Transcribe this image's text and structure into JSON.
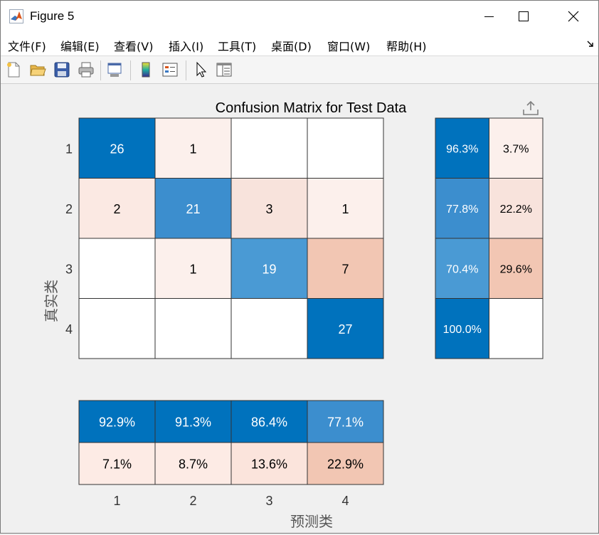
{
  "window": {
    "title": "Figure 5",
    "icon": "matlab-logo-icon"
  },
  "menu": [
    {
      "label": "文件(F)"
    },
    {
      "label": "编辑(E)"
    },
    {
      "label": "查看(V)"
    },
    {
      "label": "插入(I)"
    },
    {
      "label": "工具(T)"
    },
    {
      "label": "桌面(D)"
    },
    {
      "label": "窗口(W)"
    },
    {
      "label": "帮助(H)"
    }
  ],
  "toolbar": [
    "new-figure-icon",
    "open-folder-icon",
    "save-icon",
    "print-icon",
    "link-plot-icon",
    "colorbar-icon",
    "legend-icon",
    "pointer-icon",
    "property-inspector-icon"
  ],
  "colors": {
    "blue_dark": "#0072bd",
    "blue_mid": "#3c8ece",
    "blue_light": "#4a9ad4",
    "pink_light": "#fcf0ec",
    "pink_mid": "#f8e3dc",
    "pink_strong": "#f2c6b3"
  },
  "chart_data": {
    "type": "heatmap",
    "title": "Confusion Matrix for Test Data",
    "xlabel": "预测类",
    "ylabel": "真实类",
    "classes": [
      "1",
      "2",
      "3",
      "4"
    ],
    "matrix": [
      [
        26,
        1,
        null,
        null
      ],
      [
        2,
        21,
        3,
        1
      ],
      [
        null,
        1,
        19,
        7
      ],
      [
        null,
        null,
        null,
        27
      ]
    ],
    "row_summary": [
      [
        "96.3%",
        "3.7%"
      ],
      [
        "77.8%",
        "22.2%"
      ],
      [
        "70.4%",
        "29.6%"
      ],
      [
        "100.0%",
        ""
      ]
    ],
    "column_summary": {
      "correct": [
        "92.9%",
        "91.3%",
        "86.4%",
        "77.1%"
      ],
      "incorrect": [
        "7.1%",
        "8.7%",
        "13.6%",
        "22.9%"
      ]
    },
    "axes_toolbar_icon": "export-icon"
  }
}
